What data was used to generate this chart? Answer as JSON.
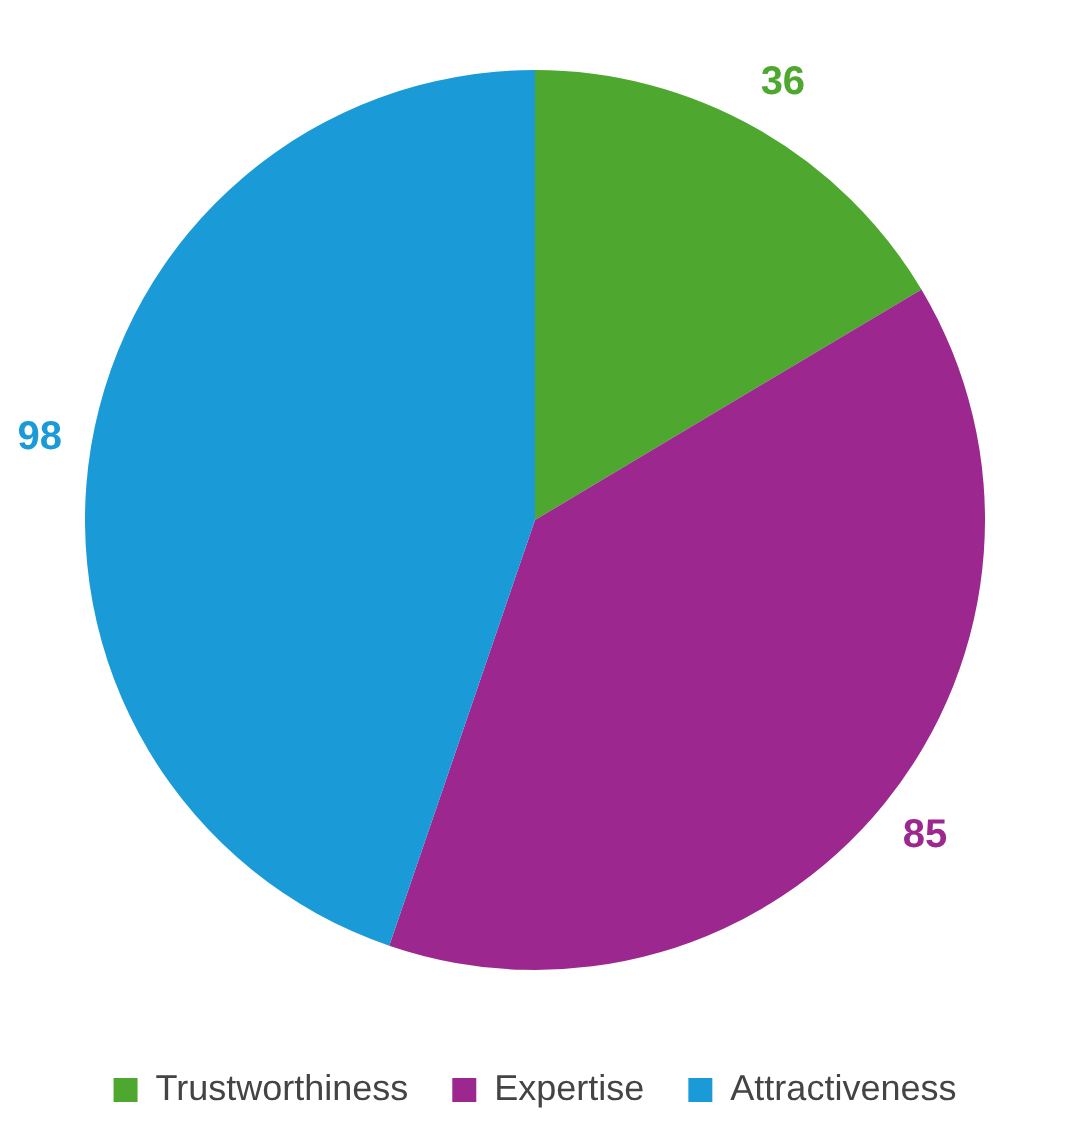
{
  "chart_data": {
    "type": "pie",
    "categories": [
      "Trustworthiness",
      "Expertise",
      "Attractiveness"
    ],
    "values": [
      36,
      85,
      98
    ],
    "colors": [
      "#4ea72e",
      "#9b278f",
      "#1a9bd7"
    ],
    "data_labels": true,
    "legend": "bottom"
  }
}
